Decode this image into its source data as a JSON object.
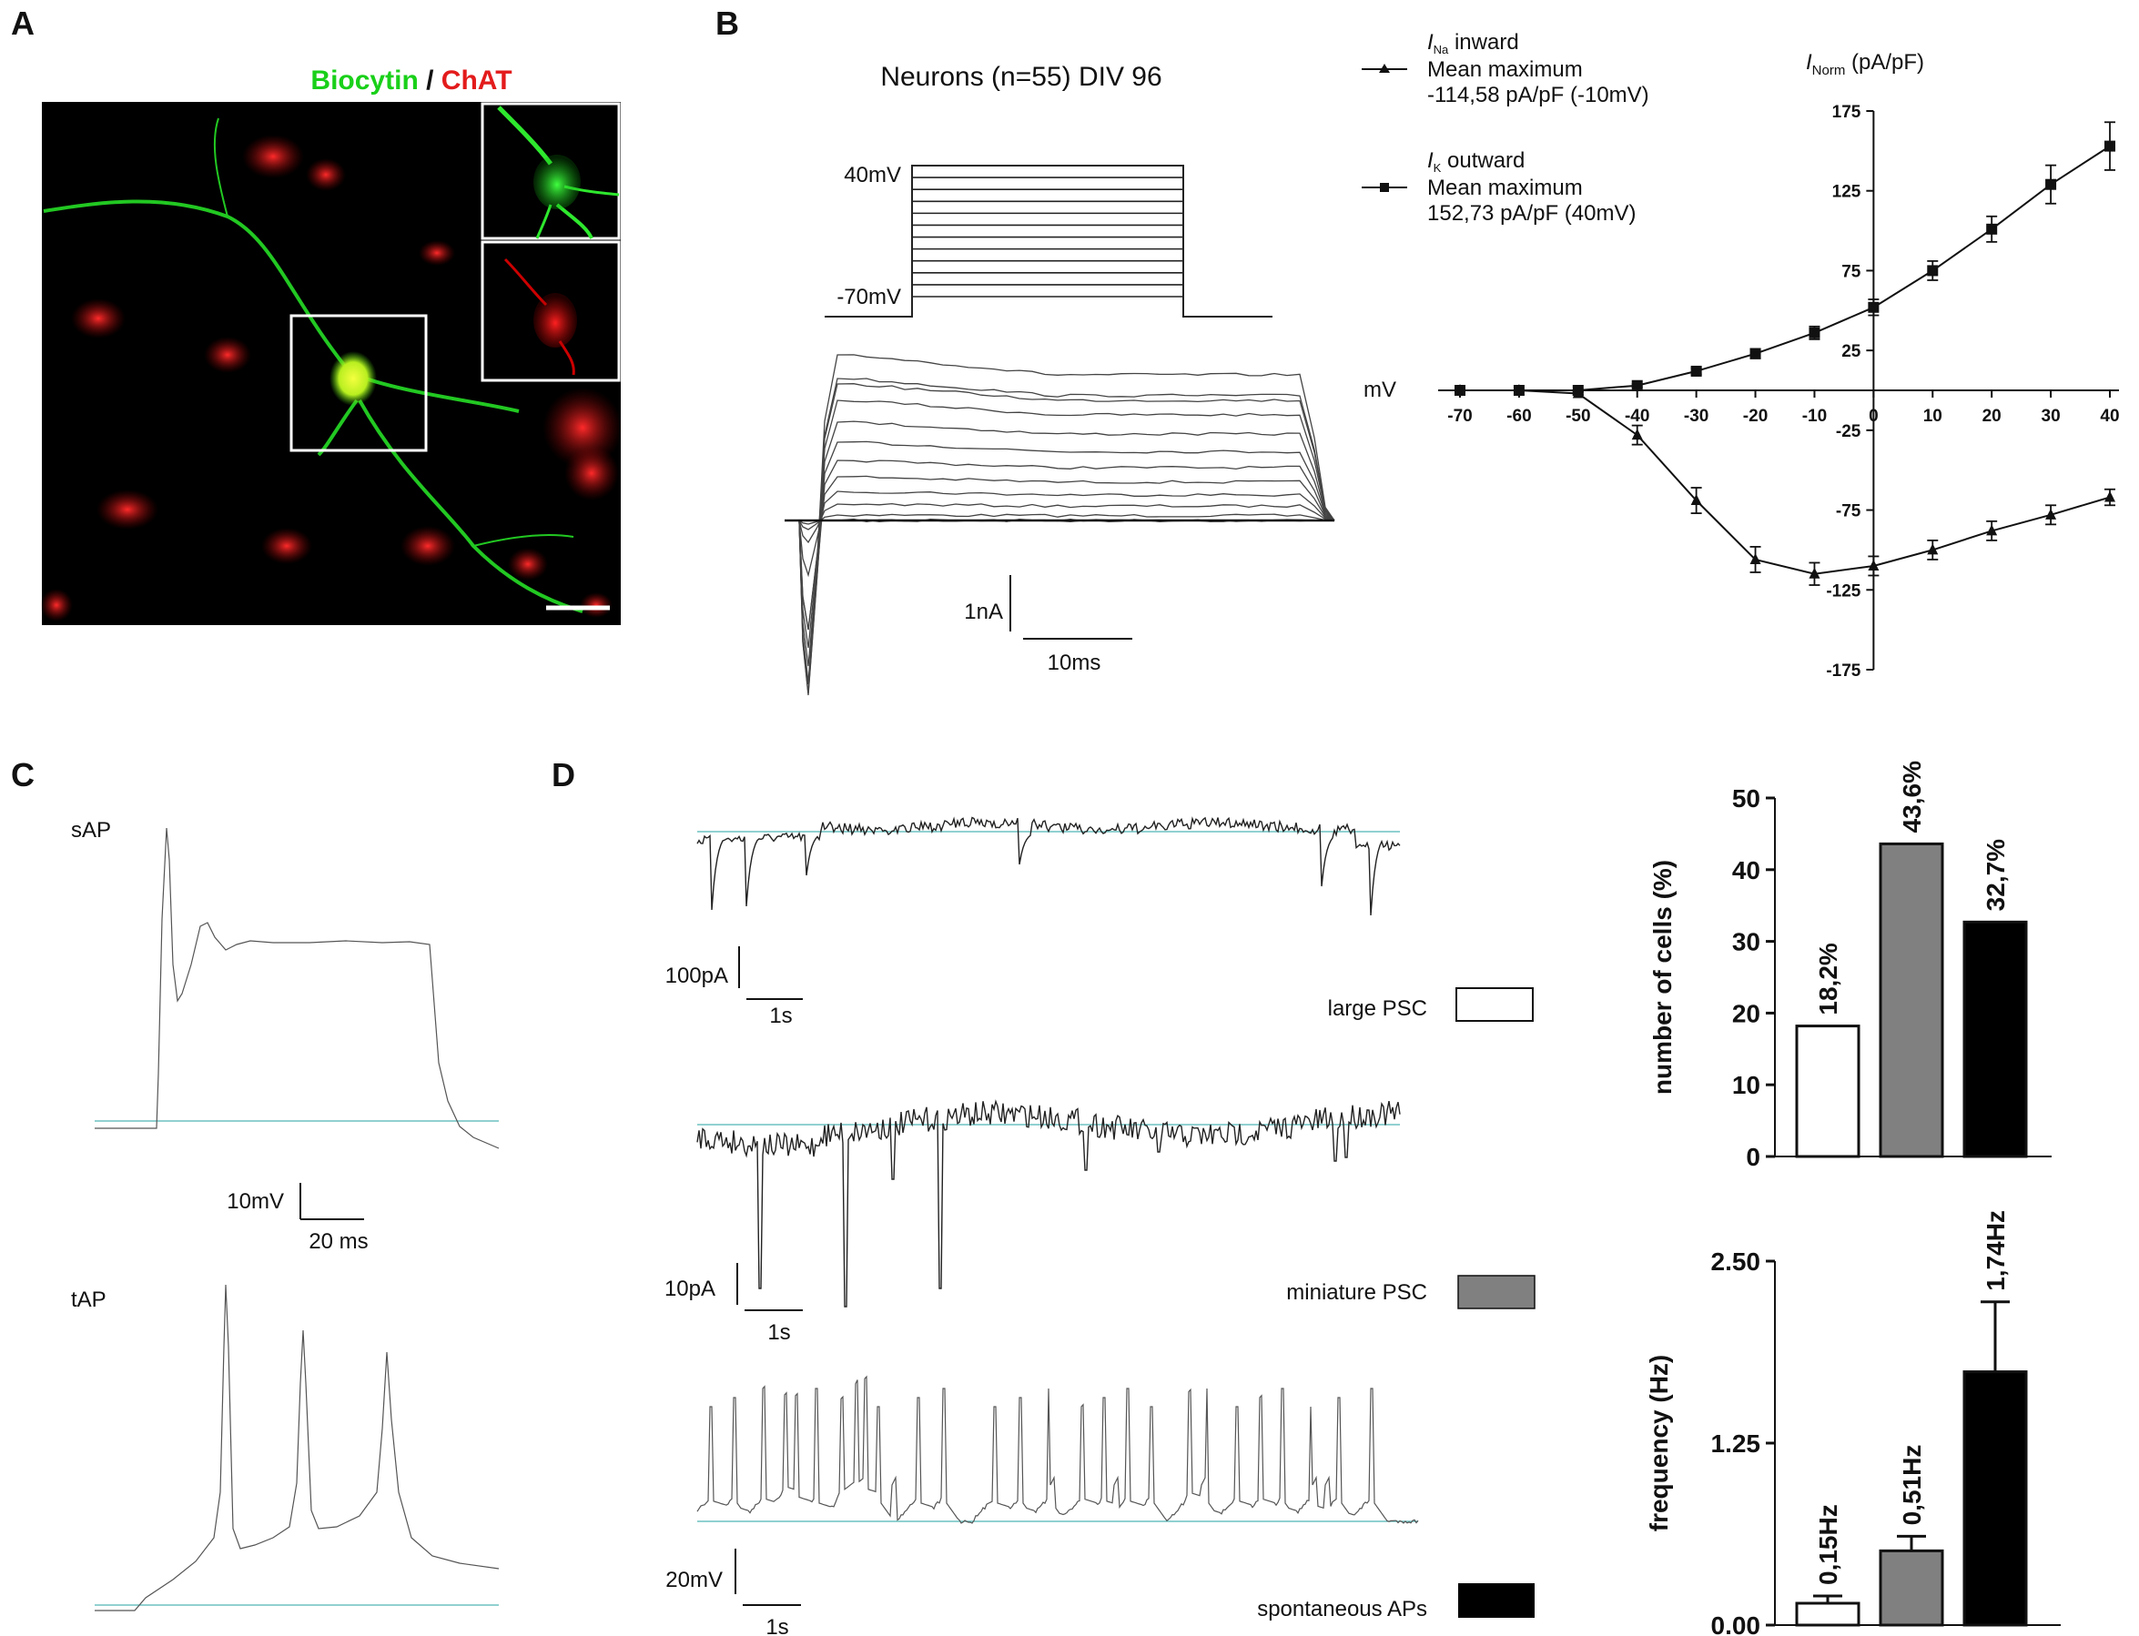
{
  "panels": {
    "A": {
      "letter": "A",
      "title_green": "Biocytin",
      "title_sep": " / ",
      "title_red": "ChAT",
      "colors": {
        "green": "#19d019",
        "red": "#e31b1b"
      }
    },
    "B": {
      "letter": "B",
      "protocol_title": "Neurons (n=55) DIV 96",
      "v_top": "40mV",
      "v_bottom": "-70mV",
      "scale_current": "1nA",
      "scale_time": "10ms",
      "legend": {
        "na_sym": "I",
        "na_sub": "Na",
        "na_label": " inward",
        "na_line2": "Mean maximum",
        "na_line3": "-114,58 pA/pF (-10mV)",
        "k_sym": "I",
        "k_sub": "K",
        "k_label": " outward",
        "k_line2": "Mean maximum",
        "k_line3": "152,73 pA/pF (40mV)"
      },
      "iv": {
        "y_sym": "I",
        "y_sub": "Norm",
        "y_unit": " (pA/pF)",
        "x_label": "mV"
      }
    },
    "C": {
      "letter": "C",
      "sap_label": "sAP",
      "tap_label": "tAP",
      "scale_v": "10mV",
      "scale_t": "20 ms"
    },
    "D": {
      "letter": "D",
      "trace1_scale_i": "100pA",
      "trace1_scale_t": "1s",
      "trace2_scale_i": "10pA",
      "trace2_scale_t": "1s",
      "trace3_scale_v": "20mV",
      "trace3_scale_t": "1s",
      "legend": [
        {
          "label": "large PSC",
          "color": "#ffffff"
        },
        {
          "label": "miniature PSC",
          "color": "#808080"
        },
        {
          "label": "spontaneous APs",
          "color": "#000000"
        }
      ]
    }
  },
  "chart_data": [
    {
      "type": "line",
      "x": [
        -70,
        -60,
        -50,
        -40,
        -30,
        -20,
        -10,
        0,
        10,
        20,
        30,
        40
      ],
      "xlabel": "mV",
      "ylabel": "INorm (pA/pF)",
      "xlim": [
        -70,
        40
      ],
      "ylim": [
        -175,
        175
      ],
      "x_ticks": [
        "-70",
        "-60",
        "-50",
        "-40",
        "-30",
        "-20",
        "-10",
        "0",
        "10",
        "20",
        "30",
        "40"
      ],
      "y_ticks": [
        "175",
        "125",
        "75",
        "25",
        "-25",
        "-75",
        "-125",
        "-175"
      ],
      "y_tick_values": [
        175,
        125,
        75,
        25,
        -25,
        -75,
        -125,
        -175
      ],
      "series": [
        {
          "name": "INa inward",
          "marker": "triangle",
          "values": [
            0,
            0,
            -2,
            -28,
            -69,
            -106,
            -115,
            -110,
            -100,
            -88,
            -78,
            -67
          ],
          "errors": [
            0,
            0,
            1,
            6,
            8,
            8,
            7,
            6,
            6,
            6,
            6,
            5
          ]
        },
        {
          "name": "IK outward",
          "marker": "square",
          "values": [
            0,
            0,
            0,
            3,
            12,
            23,
            36,
            52,
            75,
            101,
            129,
            153
          ],
          "errors": [
            0,
            0,
            0,
            1,
            2,
            3,
            4,
            5,
            6,
            8,
            12,
            15
          ]
        }
      ]
    },
    {
      "type": "bar",
      "categories": [
        "large PSC",
        "miniature PSC",
        "spontaneous APs"
      ],
      "values": [
        18.2,
        43.6,
        32.7
      ],
      "data_labels": [
        "18,2%",
        "43,6%",
        "32,7%"
      ],
      "colors": [
        "#ffffff",
        "#808080",
        "#000000"
      ],
      "ylabel": "number of cells (%)",
      "ylim": [
        0,
        50
      ],
      "y_ticks": [
        "0",
        "10",
        "20",
        "30",
        "40",
        "50"
      ],
      "y_tick_values": [
        0,
        10,
        20,
        30,
        40,
        50
      ]
    },
    {
      "type": "bar",
      "categories": [
        "large PSC",
        "miniature PSC",
        "spontaneous APs"
      ],
      "values": [
        0.15,
        0.51,
        1.74
      ],
      "errors": [
        0.05,
        0.1,
        0.48
      ],
      "data_labels": [
        "0,15Hz",
        "0,51Hz",
        "1,74Hz"
      ],
      "colors": [
        "#ffffff",
        "#808080",
        "#000000"
      ],
      "ylabel": "frequency (Hz)",
      "ylim": [
        0,
        2.5
      ],
      "y_ticks": [
        "0.00",
        "1.25",
        "2.50"
      ],
      "y_tick_values": [
        0,
        1.25,
        2.5
      ]
    }
  ]
}
